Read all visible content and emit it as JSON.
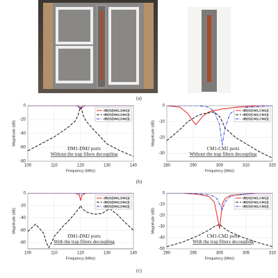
{
  "figure": {
    "panel_labels": [
      "(a)",
      "(b)",
      "(c)"
    ]
  },
  "chart_data": [
    {
      "type": "line",
      "x_label": "Frequency (MHz)",
      "y_label": "Magnitude (dB)",
      "annotations": [
        "DM1-DM2 ports",
        "Without the trap filters decoupling"
      ],
      "xlim": [
        100,
        140
      ],
      "xticks": [
        100,
        110,
        120,
        130,
        140
      ],
      "ylim": [
        -80,
        0
      ],
      "yticks": [
        0,
        -20,
        -40,
        -60,
        -80
      ],
      "grid": true,
      "legend": "upper right",
      "x": [
        100,
        105,
        110,
        115,
        118,
        119,
        119.5,
        120,
        120.5,
        121,
        122,
        125,
        130,
        135,
        140
      ],
      "series": [
        {
          "name": "dB(S(DM1,DM1))",
          "color": "#e8231f",
          "dash": "solid",
          "values": [
            0,
            0,
            0,
            0,
            0,
            -0.5,
            -2,
            -5,
            -2,
            -0.5,
            0,
            0,
            0,
            0,
            0
          ]
        },
        {
          "name": "dB(S(DM2,DM1))",
          "color": "#111111",
          "dash": "dashed",
          "values": [
            -65,
            -55,
            -45,
            -32,
            -22,
            -14,
            -7,
            -2,
            -7,
            -14,
            -22,
            -35,
            -55,
            -65,
            -73
          ]
        },
        {
          "name": "dB(S(DM2,DM2))",
          "color": "#2a3be0",
          "dash": "dashdot",
          "values": [
            0,
            0,
            0,
            0,
            0,
            -1,
            -3,
            -6,
            -3,
            -1,
            0,
            0,
            0,
            0,
            0
          ]
        }
      ]
    },
    {
      "type": "line",
      "x_label": "Frequency (MHz)",
      "y_label": "Magnitude (dB)",
      "annotations": [
        "CM1-CM2 ports",
        "Without the trap filters decoupling"
      ],
      "xlim": [
        280,
        320
      ],
      "xticks": [
        280,
        290,
        300,
        310,
        320
      ],
      "ylim": [
        -35,
        0
      ],
      "yticks": [
        0,
        -10,
        -20,
        -30
      ],
      "grid": true,
      "legend": "upper right",
      "x": [
        280,
        285,
        288,
        290,
        291,
        292,
        294,
        296,
        298,
        300,
        301,
        302,
        304,
        306,
        310,
        315,
        320
      ],
      "series": [
        {
          "name": "dB(S(CM1,CM1))",
          "color": "#e8231f",
          "dash": "solid",
          "values": [
            0,
            -1,
            -5,
            -10,
            -12,
            -10,
            -6,
            -4,
            -3,
            -2.5,
            -2,
            -2,
            -1.5,
            -1,
            -0.5,
            0,
            0
          ]
        },
        {
          "name": "dB(S(CM2,CM1))",
          "color": "#111111",
          "dash": "dashed",
          "values": [
            -22,
            -15,
            -10,
            -8,
            -7,
            -6,
            -5,
            -4.5,
            -4,
            -7,
            -10,
            -14,
            -17,
            -20,
            -24,
            -29,
            -33
          ]
        },
        {
          "name": "dB(S(CM2,CM2))",
          "color": "#2a3be0",
          "dash": "dashdot",
          "values": [
            0,
            0,
            0,
            0,
            0,
            0,
            -0.5,
            -1,
            -4,
            -12,
            -25,
            -14,
            -5,
            -3,
            -1,
            -0.5,
            0
          ]
        }
      ]
    },
    {
      "type": "line",
      "x_label": "Frequency (MHz)",
      "y_label": "Magnitude (dB)",
      "annotations": [
        "DM1-DM2 ports",
        "With the trap filters decoupling"
      ],
      "xlim": [
        100,
        140
      ],
      "xticks": [
        100,
        110,
        120,
        130,
        140
      ],
      "ylim": [
        -90,
        0
      ],
      "yticks": [
        0,
        -20,
        -40,
        -60,
        -80
      ],
      "grid": true,
      "legend": "upper right",
      "x": [
        100,
        103,
        106,
        107,
        108,
        109,
        110,
        113,
        116,
        118,
        119.5,
        120,
        120.5,
        122,
        125,
        128,
        131,
        134,
        137,
        140
      ],
      "series": [
        {
          "name": "dB(S(DM1,DM1))",
          "color": "#e8231f",
          "dash": "solid",
          "values": [
            0,
            0,
            0,
            0,
            0,
            0,
            0,
            0,
            0,
            0,
            -3,
            -12,
            -3,
            0,
            0,
            0,
            0,
            0,
            0,
            0
          ]
        },
        {
          "name": "dB(S(DM2,DM1))",
          "color": "#111111",
          "dash": "dashed",
          "values": [
            -62,
            -50,
            -65,
            -80,
            -88,
            -80,
            -70,
            -55,
            -42,
            -32,
            -24,
            -20,
            -24,
            -30,
            -34,
            -33,
            -25,
            -35,
            -48,
            -60
          ]
        },
        {
          "name": "dB(S(DM2,DM2))",
          "color": "#2a3be0",
          "dash": "dashdot",
          "values": [
            0,
            0,
            0,
            0,
            0,
            0,
            0,
            0,
            0,
            0,
            -0.5,
            -2,
            -0.5,
            0,
            0,
            0,
            0,
            0,
            0,
            0
          ]
        }
      ]
    },
    {
      "type": "line",
      "x_label": "Frequency (MHz)",
      "y_label": "Magnitude (dB)",
      "annotations": [
        "CM1-CM2 ports",
        "With the trap filters decoupling"
      ],
      "xlim": [
        290,
        310
      ],
      "xticks": [
        290,
        295,
        300,
        305,
        310
      ],
      "ylim": [
        -50,
        0
      ],
      "yticks": [
        0,
        -10,
        -20,
        -30,
        -40,
        -50
      ],
      "grid": true,
      "legend": "upper right",
      "x": [
        290,
        293,
        296,
        298,
        299,
        299.5,
        300,
        300.5,
        301,
        302,
        304,
        307,
        310
      ],
      "series": [
        {
          "name": "dB(S(CM1,CM1))",
          "color": "#e8231f",
          "dash": "solid",
          "values": [
            0,
            0,
            -1,
            -3,
            -8,
            -20,
            -32,
            -10,
            -5,
            -2,
            -1,
            0,
            0
          ]
        },
        {
          "name": "dB(S(CM2,CM1))",
          "color": "#111111",
          "dash": "dashed",
          "values": [
            -48,
            -44,
            -38,
            -33,
            -30,
            -29,
            -28,
            -30,
            -32,
            -35,
            -39,
            -44,
            -48
          ]
        },
        {
          "name": "dB(S(CM2,CM2))",
          "color": "#2a3be0",
          "dash": "dashdot",
          "values": [
            0,
            0,
            -0.5,
            -1.5,
            -3,
            -5,
            -10,
            -15,
            -8,
            -3,
            -1,
            0,
            0
          ]
        }
      ]
    }
  ]
}
